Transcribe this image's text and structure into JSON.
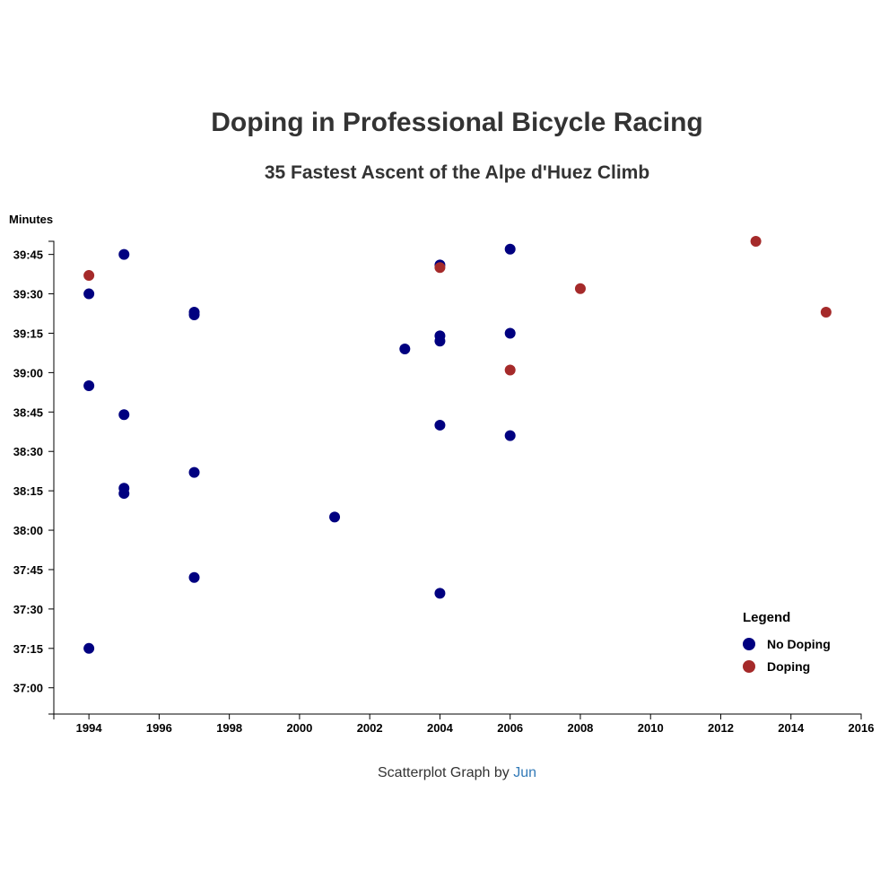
{
  "chart_title": "Doping in Professional Bicycle Racing",
  "chart_subtitle": "35 Fastest Ascent of the Alpe d'Huez Climb",
  "credit": {
    "prefix": "Scatterplot Graph by ",
    "author": "Jun"
  },
  "colors": {
    "no_doping": "#000080",
    "doping": "#a52a2a",
    "axis": "#000000"
  },
  "chart_data": {
    "type": "scatter",
    "title": "Doping in Professional Bicycle Racing",
    "subtitle": "35 Fastest Ascent of the Alpe d'Huez Climb",
    "xlabel": "",
    "ylabel": "Minutes",
    "xlim": [
      1993,
      2016
    ],
    "ylim": [
      "36:50",
      "39:50"
    ],
    "x_ticks": [
      "1994",
      "1996",
      "1998",
      "2000",
      "2002",
      "2004",
      "2006",
      "2008",
      "2010",
      "2012",
      "2014",
      "2016"
    ],
    "y_ticks": [
      "37:00",
      "37:15",
      "37:30",
      "37:45",
      "38:00",
      "38:15",
      "38:30",
      "38:45",
      "39:00",
      "39:15",
      "39:30",
      "39:45"
    ],
    "legend": {
      "title": "Legend",
      "position": "bottom-right"
    },
    "grid": false,
    "series": [
      {
        "name": "No Doping",
        "color": "#000080",
        "points": [
          {
            "x": 1994,
            "y": "37:15"
          },
          {
            "x": 1994,
            "y": "38:55"
          },
          {
            "x": 1994,
            "y": "39:30"
          },
          {
            "x": 1995,
            "y": "38:14"
          },
          {
            "x": 1995,
            "y": "38:16"
          },
          {
            "x": 1995,
            "y": "38:44"
          },
          {
            "x": 1995,
            "y": "39:45"
          },
          {
            "x": 1997,
            "y": "37:42"
          },
          {
            "x": 1997,
            "y": "38:22"
          },
          {
            "x": 1997,
            "y": "39:22"
          },
          {
            "x": 1997,
            "y": "39:23"
          },
          {
            "x": 2001,
            "y": "38:05"
          },
          {
            "x": 2003,
            "y": "39:09"
          },
          {
            "x": 2004,
            "y": "37:36"
          },
          {
            "x": 2004,
            "y": "38:40"
          },
          {
            "x": 2004,
            "y": "39:12"
          },
          {
            "x": 2004,
            "y": "39:14"
          },
          {
            "x": 2004,
            "y": "39:41"
          },
          {
            "x": 2006,
            "y": "38:36"
          },
          {
            "x": 2006,
            "y": "39:15"
          },
          {
            "x": 2006,
            "y": "39:47"
          }
        ]
      },
      {
        "name": "Doping",
        "color": "#a52a2a",
        "points": [
          {
            "x": 1994,
            "y": "39:37"
          },
          {
            "x": 2004,
            "y": "39:40"
          },
          {
            "x": 2006,
            "y": "39:01"
          },
          {
            "x": 2008,
            "y": "39:32"
          },
          {
            "x": 2013,
            "y": "39:50"
          },
          {
            "x": 2015,
            "y": "39:23"
          }
        ]
      }
    ]
  }
}
